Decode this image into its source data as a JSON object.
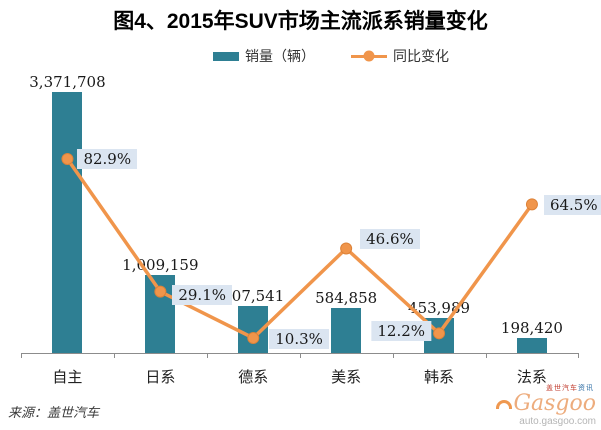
{
  "title": "图4、2015年SUV市场主流派系销量变化",
  "legend": [
    {
      "label": "销量（辆）",
      "type": "bar"
    },
    {
      "label": "同比变化",
      "type": "line"
    }
  ],
  "colors": {
    "bar": "#2E7F93",
    "line": "#F0954B",
    "marker_stroke": "#DD8238",
    "pct_label_bg": "#DBE5F1",
    "axis": "#8C8C8C"
  },
  "chart_data": {
    "type": "bar+line",
    "title": "图4、2015年SUV市场主流派系销量变化",
    "categories": [
      "自主",
      "日系",
      "德系",
      "美系",
      "韩系",
      "法系"
    ],
    "series": [
      {
        "name": "销量（辆）",
        "type": "bar",
        "color": "#2E7F93",
        "values": [
          3371708,
          1009159,
          607541,
          584858,
          453989,
          198420
        ],
        "labels": [
          "3,371,708",
          "1,009,159",
          "607,541",
          "584,858",
          "453,989",
          "198,420"
        ]
      },
      {
        "name": "同比变化",
        "type": "line",
        "color": "#F0954B",
        "values": [
          82.9,
          29.1,
          10.3,
          46.6,
          12.2,
          64.5
        ],
        "labels": [
          "82.9%",
          "29.1%",
          "10.3%",
          "46.6%",
          "12.2%",
          "64.5%"
        ],
        "label_offsets": [
          {
            "side": "right",
            "dx": 10,
            "dy": 0
          },
          {
            "side": "right",
            "dx": 12,
            "dy": 3
          },
          {
            "side": "right",
            "dx": 16,
            "dy": 1
          },
          {
            "side": "right",
            "dx": 14,
            "dy": -9
          },
          {
            "side": "left",
            "dx": 8,
            "dy": -2
          },
          {
            "side": "right",
            "dx": 12,
            "dy": 1
          }
        ]
      }
    ],
    "xlabel": "",
    "ylabel": "",
    "axes": {
      "y_left": "hidden",
      "y_right": "hidden",
      "x": "category ticks"
    },
    "grid": false,
    "legend_position": "top-center"
  },
  "footer": {
    "source": "来源：盖世汽车",
    "logo_top_red": "盖世汽车",
    "logo_top_blue": "资讯",
    "logo_text": "Gasgoo",
    "logo_domain": "auto.gasgoo.com"
  }
}
